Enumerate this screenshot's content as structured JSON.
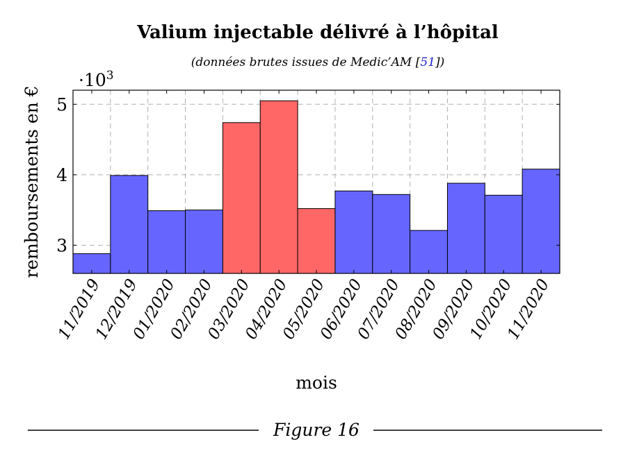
{
  "chart_data": {
    "type": "bar",
    "title": "Valium injectable délivré à l’hôpital",
    "subtitle_prefix": "(données brutes issues de Medic’AM [",
    "subtitle_ref": "51",
    "subtitle_suffix": "])",
    "xlabel": "mois",
    "ylabel": "remboursements en €",
    "y_multiplier": "·10",
    "y_multiplier_exp": "3",
    "ylim": [
      2.6,
      5.2
    ],
    "yticks": [
      3,
      4,
      5
    ],
    "grid": true,
    "categories": [
      "11/2019",
      "12/2019",
      "01/2020",
      "02/2020",
      "03/2020",
      "04/2020",
      "05/2020",
      "06/2020",
      "07/2020",
      "08/2020",
      "09/2020",
      "10/2020",
      "11/2020"
    ],
    "values": [
      2.88,
      3.99,
      3.49,
      3.5,
      4.74,
      5.05,
      3.52,
      3.77,
      3.72,
      3.21,
      3.88,
      3.71,
      4.08
    ],
    "highlight": [
      false,
      false,
      false,
      false,
      true,
      true,
      true,
      false,
      false,
      false,
      false,
      false,
      false
    ],
    "colors": {
      "normal": "#6666ff",
      "highlight": "#ff6666",
      "link": "#2222cc",
      "grid": "#b0b0b0"
    }
  },
  "caption": "Figure 16"
}
